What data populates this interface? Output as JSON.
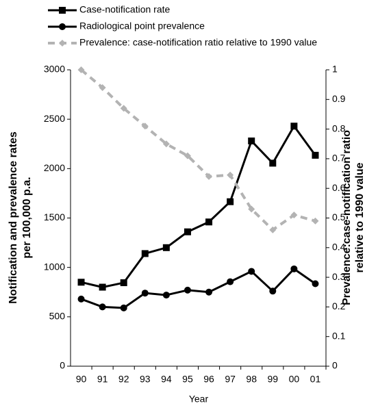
{
  "chart_data": {
    "type": "line",
    "x_label": "Year",
    "y_label": [
      "Notification and prevalence rates",
      "per 100,000 p.a."
    ],
    "y2_label": [
      "Prevalence:case-notification ratio",
      "relative to 1990 value"
    ],
    "categories": [
      "90",
      "91",
      "92",
      "93",
      "94",
      "95",
      "96",
      "97",
      "98",
      "99",
      "00",
      "01"
    ],
    "series": [
      {
        "name": "Case-notification rate",
        "color": "#000000",
        "marker": "square",
        "values": [
          850,
          800,
          845,
          1140,
          1200,
          1360,
          1460,
          1665,
          2280,
          2055,
          2430,
          2135
        ]
      },
      {
        "name": "Radiological point prevalence",
        "color": "#000000",
        "marker": "circle",
        "values": [
          680,
          600,
          590,
          740,
          720,
          770,
          750,
          855,
          960,
          760,
          985,
          835
        ]
      },
      {
        "name": "Prevalence: case-notification ratio relative to 1990 value",
        "color": "#b3b3b3",
        "marker": "diamond",
        "dashed": true,
        "axis": "y2",
        "values": [
          1.0,
          0.94,
          0.87,
          0.81,
          0.75,
          0.71,
          0.64,
          0.645,
          0.53,
          0.46,
          0.51,
          0.49
        ]
      }
    ],
    "ylim": [
      0,
      3000
    ],
    "yticks": [
      0,
      500,
      1000,
      1500,
      2000,
      2500,
      3000
    ],
    "y2lim": [
      0,
      1
    ],
    "y2ticks": [
      0,
      0.1,
      0.2,
      0.3,
      0.4,
      0.5,
      0.6,
      0.7,
      0.8,
      0.9,
      1
    ],
    "legend": "top-left",
    "grid": false
  }
}
